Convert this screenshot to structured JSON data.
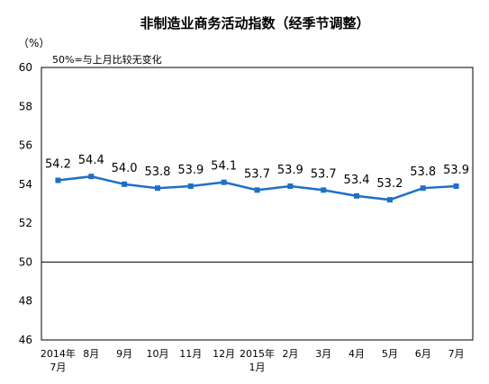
{
  "chart_data": {
    "type": "line",
    "title": "非制造业商务活动指数（经季节调整）",
    "unit_label": "（%）",
    "annotation": "50%=与上月比较无变化",
    "categories": [
      [
        "2014年",
        "7月"
      ],
      [
        "8月"
      ],
      [
        "9月"
      ],
      [
        "10月"
      ],
      [
        "11月"
      ],
      [
        "12月"
      ],
      [
        "2015年",
        "1月"
      ],
      [
        "2月"
      ],
      [
        "3月"
      ],
      [
        "4月"
      ],
      [
        "5月"
      ],
      [
        "6月"
      ],
      [
        "7月"
      ]
    ],
    "series": [
      {
        "values": [
          54.2,
          54.4,
          54.0,
          53.8,
          53.9,
          54.1,
          53.7,
          53.9,
          53.7,
          53.4,
          53.2,
          53.8,
          53.9
        ]
      }
    ],
    "data_labels": [
      "54.2",
      "54.4",
      "54.0",
      "53.8",
      "53.9",
      "54.1",
      "53.7",
      "53.9",
      "53.7",
      "53.4",
      "53.2",
      "53.8",
      "53.9"
    ],
    "yticks": [
      46,
      48,
      50,
      52,
      54,
      56,
      58,
      60
    ],
    "ylim": [
      46,
      60
    ],
    "reference_line": 50,
    "line_color": "#1f6fc6",
    "grid": false
  }
}
